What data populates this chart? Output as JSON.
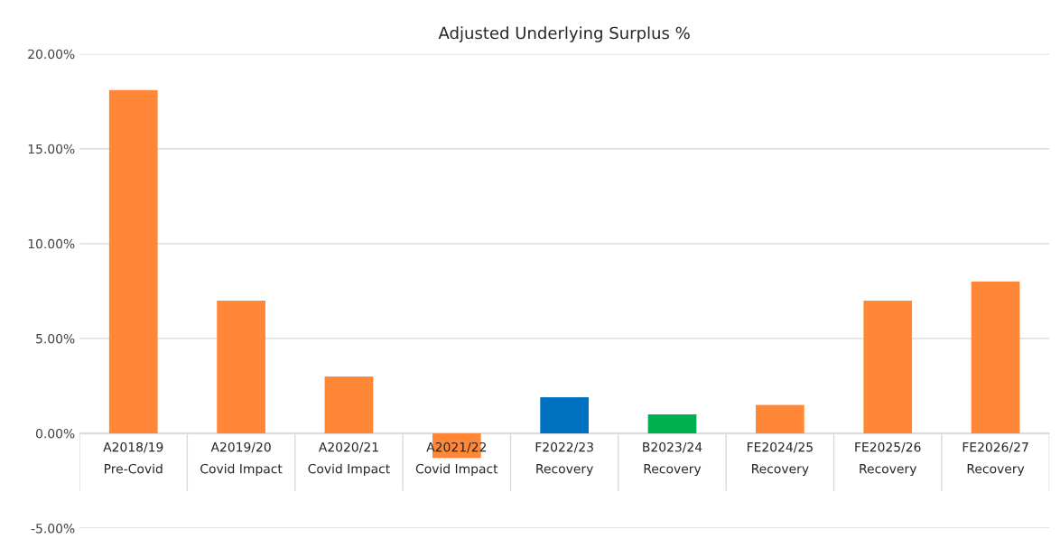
{
  "chart_data": {
    "type": "bar",
    "title": "Adjusted Underlying Surplus %",
    "categories": [
      "A2018/19\nPre-Covid",
      "A2019/20\nCovid Impact",
      "A2020/21\nCovid Impact",
      "A2021/22\nCovid Impact",
      "F2022/23\nRecovery",
      "B2023/24\nRecovery",
      "FE2024/25\nRecovery",
      "FE2025/26\nRecovery",
      "FE2026/27\nRecovery"
    ],
    "values": [
      18.1,
      7.0,
      3.0,
      -1.3,
      1.9,
      1.0,
      1.5,
      7.0,
      8.0
    ],
    "colors": [
      "#ff8737",
      "#ff8737",
      "#ff8737",
      "#ff8737",
      "#0070c0",
      "#00b050",
      "#ff8737",
      "#ff8737",
      "#ff8737"
    ],
    "ylim": [
      -5,
      20
    ],
    "yticks": [
      {
        "value": -5,
        "label": "-5.00%"
      },
      {
        "value": 0,
        "label": "0.00%"
      },
      {
        "value": 5,
        "label": "5.00%"
      },
      {
        "value": 10,
        "label": "10.00%"
      },
      {
        "value": 15,
        "label": "15.00%"
      },
      {
        "value": 20,
        "label": "20.00%"
      }
    ],
    "grid": "y"
  }
}
